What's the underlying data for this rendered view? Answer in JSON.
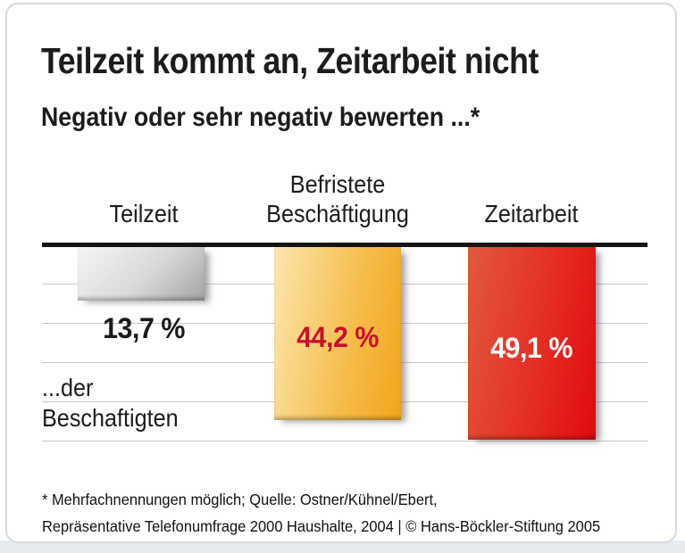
{
  "header": {
    "title": "Teilzeit kommt an, Zeitarbeit nicht",
    "subtitle": "Negativ oder sehr negativ bewerten ...*"
  },
  "chart_data": {
    "type": "bar",
    "orientation": "bars hang downward from zero baseline at top",
    "categories": [
      "Teilzeit",
      "Befristete Beschäftigung",
      "Zeitarbeit"
    ],
    "values": [
      13.7,
      44.2,
      49.1
    ],
    "value_labels": [
      "13,7 %",
      "44,2 %",
      "49,1 %"
    ],
    "unit": "%",
    "title": "Teilzeit kommt an, Zeitarbeit nicht",
    "subtitle": "Negativ oder sehr negativ bewerten ...*",
    "annotation_line1": "...der",
    "annotation_line2": "Beschaftigten",
    "value_range": [
      0,
      50
    ],
    "gridline_interval": 10,
    "grid": "horizontal gridlines every 10% below the zero line",
    "legend_position": "none",
    "bar_colors": {
      "teilzeit": "#c0c0c0",
      "befristete_beschaeftigung": "#f2a51c",
      "zeitarbeit": "#e10a0d"
    },
    "value_label_colors": {
      "teilzeit": "#1a1a1a",
      "befristete_beschaeftigung": "#c9112c",
      "zeitarbeit": "#ffffff"
    }
  },
  "footer": {
    "line1": "* Mehrfachnennungen möglich; Quelle: Ostner/Kühnel/Ebert,",
    "line2": "Repräsentative Telefonumfrage 2000 Haushalte, 2004 | © Hans-Böckler-Stiftung 2005"
  }
}
